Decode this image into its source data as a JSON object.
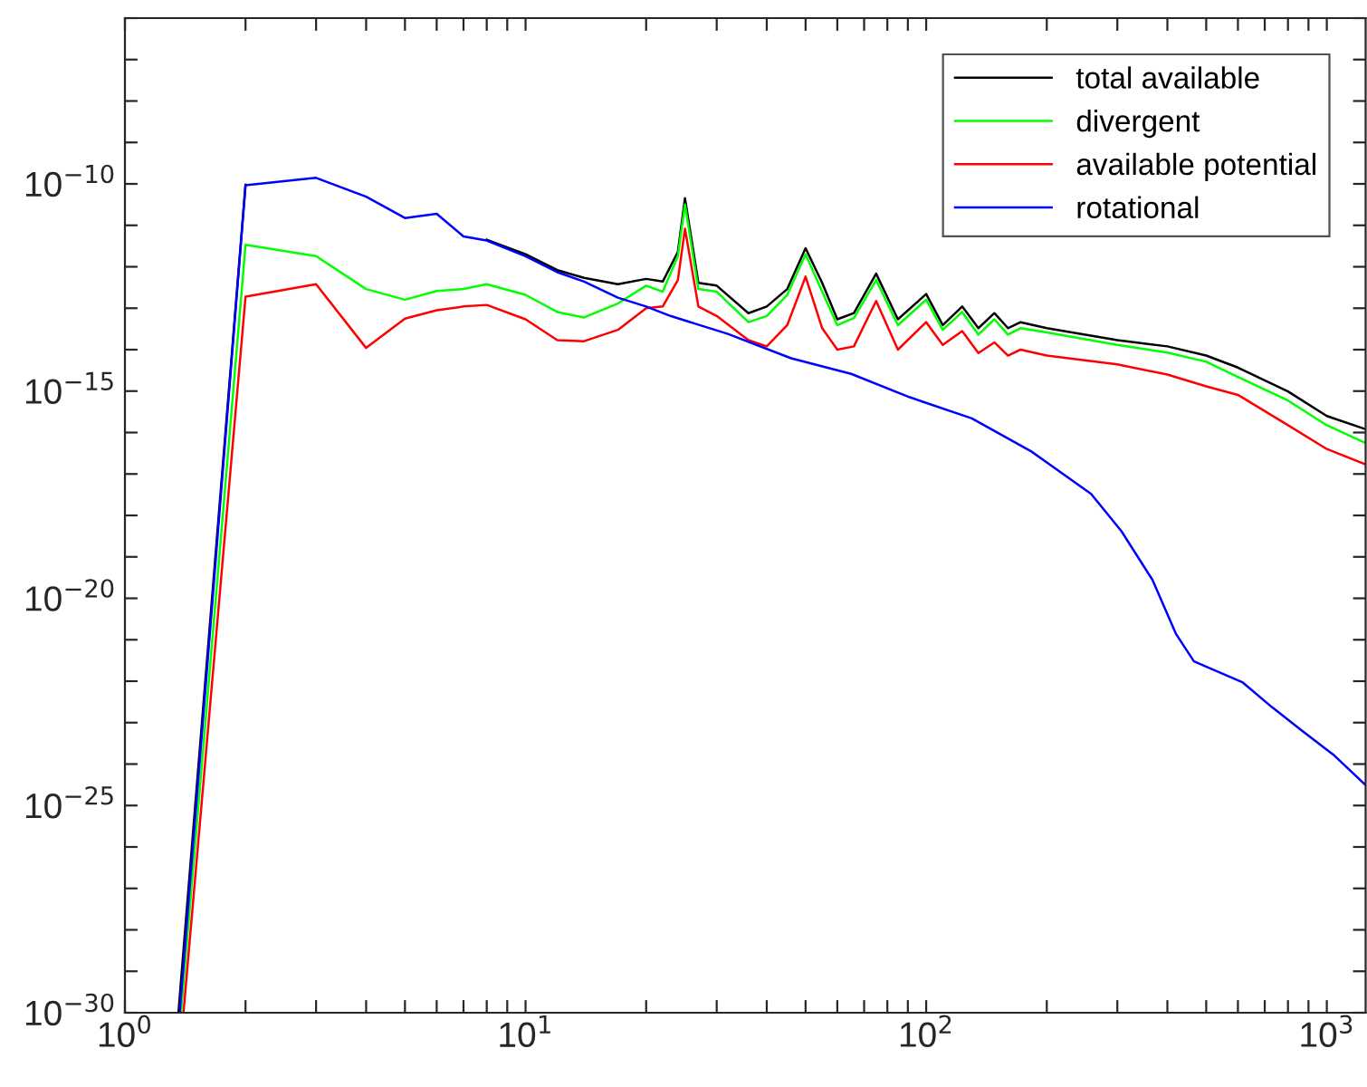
{
  "chart_data": {
    "type": "line",
    "log": "xy",
    "grid": false,
    "legend": "top right",
    "line_style": "solid",
    "marker": "none",
    "xlim": [
      1,
      1250
    ],
    "ylim": [
      1e-30,
      1e-06
    ],
    "xticks": [
      {
        "value": 1,
        "label": "10$^{0}$"
      },
      {
        "value": 2,
        "label": null
      },
      {
        "value": 3,
        "label": null
      },
      {
        "value": 4,
        "label": null
      },
      {
        "value": 5,
        "label": null
      },
      {
        "value": 6,
        "label": null
      },
      {
        "value": 7,
        "label": null
      },
      {
        "value": 8,
        "label": null
      },
      {
        "value": 9,
        "label": null
      },
      {
        "value": 10,
        "label": "10$^{1}$"
      },
      {
        "value": 20,
        "label": null
      },
      {
        "value": 30,
        "label": null
      },
      {
        "value": 40,
        "label": null
      },
      {
        "value": 50,
        "label": null
      },
      {
        "value": 60,
        "label": null
      },
      {
        "value": 70,
        "label": null
      },
      {
        "value": 80,
        "label": null
      },
      {
        "value": 90,
        "label": null
      },
      {
        "value": 100,
        "label": "10$^{2}$"
      },
      {
        "value": 200,
        "label": null
      },
      {
        "value": 300,
        "label": null
      },
      {
        "value": 400,
        "label": null
      },
      {
        "value": 500,
        "label": null
      },
      {
        "value": 600,
        "label": null
      },
      {
        "value": 700,
        "label": null
      },
      {
        "value": 800,
        "label": null
      },
      {
        "value": 900,
        "label": null
      },
      {
        "value": 1000,
        "label": "10$^{3}$"
      }
    ],
    "yticks": [
      {
        "value": 1e-30,
        "label": "10$^{−30}$"
      },
      {
        "value": 1e-29,
        "label": null
      },
      {
        "value": 1e-28,
        "label": null
      },
      {
        "value": 1e-27,
        "label": null
      },
      {
        "value": 1e-26,
        "label": null
      },
      {
        "value": 1e-25,
        "label": "10$^{−25}$"
      },
      {
        "value": 1e-24,
        "label": null
      },
      {
        "value": 1e-23,
        "label": null
      },
      {
        "value": 1e-22,
        "label": null
      },
      {
        "value": 1e-21,
        "label": null
      },
      {
        "value": 1e-20,
        "label": "10$^{−20}$"
      },
      {
        "value": 1e-19,
        "label": null
      },
      {
        "value": 1e-18,
        "label": null
      },
      {
        "value": 1e-17,
        "label": null
      },
      {
        "value": 1e-16,
        "label": null
      },
      {
        "value": 1e-15,
        "label": "10$^{−15}$"
      },
      {
        "value": 1e-14,
        "label": null
      },
      {
        "value": 1e-13,
        "label": null
      },
      {
        "value": 1e-12,
        "label": null
      },
      {
        "value": 1e-11,
        "label": null
      },
      {
        "value": 1e-10,
        "label": "10$^{−10}$"
      },
      {
        "value": 1e-09,
        "label": null
      },
      {
        "value": 1e-08,
        "label": null
      },
      {
        "value": 1e-07,
        "label": null
      },
      {
        "value": 1e-06,
        "label": null
      }
    ],
    "series": [
      {
        "name": "total available",
        "color": "#000000",
        "x": [
          1.36,
          2,
          3,
          4,
          5,
          6,
          7,
          8,
          10,
          12,
          14,
          17,
          20,
          22,
          24,
          25,
          27,
          30,
          36,
          40,
          45,
          50,
          55,
          60,
          66,
          75,
          85,
          100,
          110,
          123,
          135,
          148,
          160,
          172,
          200,
          300,
          400,
          500,
          600,
          800,
          1000,
          1250
        ],
        "values": [
          1e-30,
          9.5e-11,
          null,
          null,
          null,
          null,
          null,
          4.5e-12,
          2e-12,
          8.3e-13,
          5.4e-13,
          3.8e-13,
          5.1e-13,
          4.4e-13,
          2.3e-12,
          4.5e-11,
          4.1e-13,
          3.5e-13,
          7.6e-14,
          1.1e-13,
          2.9e-13,
          2.8e-12,
          4.1e-13,
          5.4e-14,
          7.6e-14,
          6.8e-13,
          5.4e-14,
          2.2e-13,
          3.9e-14,
          1.1e-13,
          3.3e-14,
          7.6e-14,
          3.3e-14,
          4.6e-14,
          3.3e-14,
          1.7e-14,
          1.2e-14,
          7.2e-15,
          3.7e-15,
          9.8e-16,
          2.5e-16,
          1.2e-16
        ]
      },
      {
        "name": "divergent",
        "color": "#00ff00",
        "x": [
          1.38,
          2,
          3,
          4,
          5,
          6,
          7,
          8,
          10,
          12,
          14,
          17,
          20,
          22,
          24,
          25,
          27,
          30,
          36,
          40,
          45,
          50,
          55,
          60,
          66,
          75,
          85,
          100,
          110,
          123,
          135,
          148,
          160,
          172,
          200,
          300,
          400,
          500,
          600,
          800,
          1000,
          1250
        ],
        "values": [
          1e-30,
          3.4e-12,
          1.8e-12,
          2.9e-13,
          1.6e-13,
          2.6e-13,
          2.9e-13,
          3.8e-13,
          2.1e-13,
          8.1e-14,
          6e-14,
          1.3e-13,
          3.5e-13,
          2.5e-13,
          1.8e-12,
          3.2e-11,
          2.9e-13,
          2.5e-13,
          4.6e-14,
          6.5e-14,
          2.1e-13,
          2e-12,
          2.5e-13,
          3.9e-14,
          5.8e-14,
          4.8e-13,
          3.9e-14,
          1.6e-13,
          3e-14,
          8.1e-14,
          2.3e-14,
          5.4e-14,
          2.3e-14,
          3.3e-14,
          2.6e-14,
          1.3e-14,
          8.5e-15,
          5.1e-15,
          2.2e-15,
          5.9e-16,
          1.5e-16,
          5.6e-17
        ]
      },
      {
        "name": "available potential",
        "color": "#ff0000",
        "x": [
          1.4,
          2,
          3,
          4,
          5,
          6,
          7,
          8,
          10,
          12,
          14,
          17,
          20,
          22,
          24,
          25,
          27,
          30,
          36,
          40,
          45,
          50,
          55,
          60,
          66,
          75,
          85,
          100,
          110,
          123,
          135,
          148,
          160,
          172,
          200,
          300,
          400,
          500,
          600,
          800,
          1000,
          1250
        ],
        "values": [
          1e-30,
          1.9e-13,
          3.8e-13,
          1.1e-14,
          5.6e-14,
          8.9e-14,
          1.1e-13,
          1.2e-13,
          5.4e-14,
          1.7e-14,
          1.6e-14,
          3e-14,
          1e-13,
          1.1e-13,
          4.8e-13,
          8.3e-12,
          1.1e-13,
          6.5e-14,
          1.7e-14,
          1.2e-14,
          3.9e-14,
          5.8e-13,
          3.3e-14,
          1e-14,
          1.2e-14,
          1.5e-13,
          1e-14,
          4.6e-14,
          1.3e-14,
          2.8e-14,
          8.3e-15,
          1.5e-14,
          7.2e-15,
          1e-14,
          7.2e-15,
          4.4e-15,
          2.5e-15,
          1.3e-15,
          8.1e-16,
          1.5e-16,
          4e-17,
          1.7e-17
        ]
      },
      {
        "name": "rotational",
        "color": "#0000ff",
        "x": [
          1.37,
          2,
          3,
          4,
          5,
          6,
          7,
          8,
          10,
          12,
          14,
          17,
          20,
          23,
          32,
          46,
          65,
          91,
          130,
          183,
          258,
          307,
          367,
          420,
          466,
          617,
          728,
          869,
          1037,
          1250
        ],
        "values": [
          1e-30,
          9.3e-11,
          1.4e-10,
          4.9e-11,
          1.5e-11,
          1.9e-11,
          5.4e-12,
          4.3e-12,
          1.8e-12,
          7.4e-13,
          4.4e-13,
          1.8e-13,
          1.1e-13,
          6.5e-14,
          2.4e-14,
          6.2e-15,
          2.6e-15,
          7.1e-16,
          2.2e-16,
          3.5e-17,
          3.3e-18,
          4.2e-19,
          2.8e-20,
          1.4e-21,
          3e-22,
          9.3e-23,
          2.4e-23,
          6.3e-24,
          1.7e-24,
          3.1e-25
        ]
      }
    ]
  }
}
